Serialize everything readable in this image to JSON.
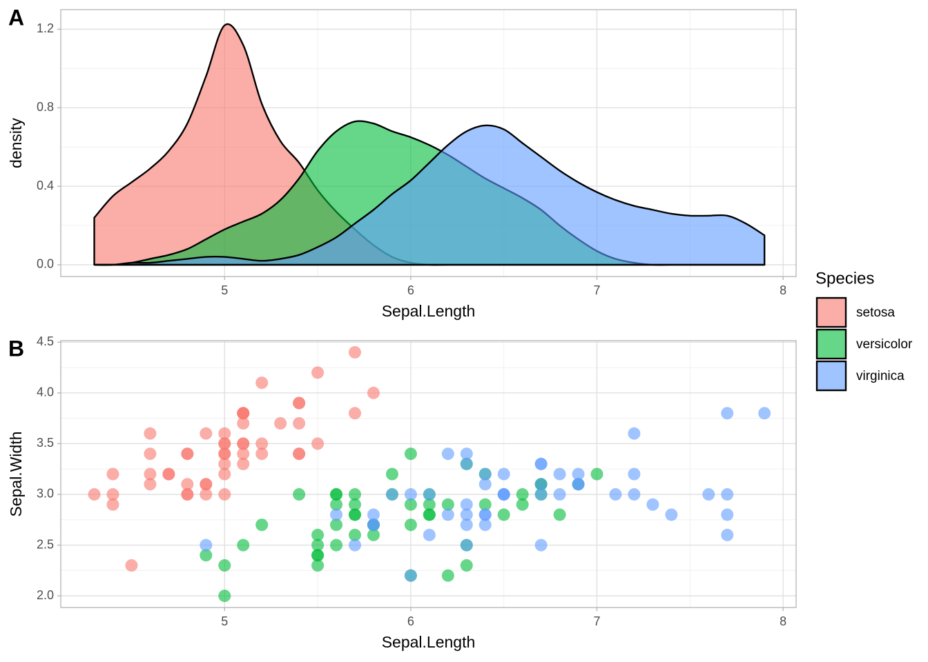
{
  "chart_data": [
    {
      "type": "density",
      "tag": "A",
      "xlabel": "Sepal.Length",
      "ylabel": "density",
      "x": [
        4.3,
        4.4,
        4.5,
        4.6,
        4.7,
        4.8,
        4.9,
        5.0,
        5.1,
        5.2,
        5.3,
        5.4,
        5.5,
        5.6,
        5.7,
        5.8,
        5.9,
        6.0,
        6.1,
        6.2,
        6.3,
        6.4,
        6.5,
        6.6,
        6.7,
        6.8,
        6.9,
        7.0,
        7.1,
        7.2,
        7.3,
        7.4,
        7.5,
        7.6,
        7.7,
        7.8,
        7.9
      ],
      "series": [
        {
          "name": "setosa",
          "color": "#F8766D",
          "values": [
            0.24,
            0.35,
            0.42,
            0.49,
            0.58,
            0.72,
            0.96,
            1.22,
            1.12,
            0.82,
            0.63,
            0.52,
            0.38,
            0.27,
            0.18,
            0.1,
            0.04,
            0.01,
            0,
            0,
            0,
            0,
            0,
            0,
            0,
            0,
            0,
            0,
            0,
            0,
            0,
            0,
            0,
            0,
            0,
            0,
            0
          ]
        },
        {
          "name": "versicolor",
          "color": "#00BA38",
          "values": [
            0,
            0,
            0.01,
            0.03,
            0.05,
            0.08,
            0.13,
            0.18,
            0.22,
            0.26,
            0.33,
            0.44,
            0.58,
            0.68,
            0.73,
            0.72,
            0.68,
            0.65,
            0.61,
            0.56,
            0.5,
            0.44,
            0.39,
            0.34,
            0.28,
            0.2,
            0.13,
            0.07,
            0.03,
            0.01,
            0,
            0,
            0,
            0,
            0,
            0,
            0
          ]
        },
        {
          "name": "virginica",
          "color": "#619CFF",
          "values": [
            0,
            0,
            0.01,
            0.01,
            0.02,
            0.03,
            0.04,
            0.04,
            0.03,
            0.02,
            0.03,
            0.05,
            0.09,
            0.14,
            0.21,
            0.28,
            0.36,
            0.43,
            0.52,
            0.61,
            0.68,
            0.71,
            0.69,
            0.62,
            0.55,
            0.48,
            0.42,
            0.37,
            0.33,
            0.3,
            0.28,
            0.26,
            0.25,
            0.25,
            0.25,
            0.21,
            0.15
          ]
        }
      ],
      "alpha": 0.6,
      "xlim": [
        4.12,
        8.07
      ],
      "xticks": [
        5,
        6,
        7,
        8
      ],
      "ylim": [
        -0.06,
        1.3
      ],
      "yticks": [
        {
          "value": 0,
          "label": "0.0"
        },
        {
          "value": 0.4,
          "label": "0.4"
        },
        {
          "value": 0.8,
          "label": "0.8"
        },
        {
          "value": 1.2,
          "label": "1.2"
        }
      ],
      "grid": true
    },
    {
      "type": "scatter",
      "tag": "B",
      "xlabel": "Sepal.Length",
      "ylabel": "Sepal.Width",
      "series": [
        {
          "color": "#F8766D",
          "x": [
            5.1,
            4.9,
            4.7,
            4.6,
            5.0,
            5.4,
            4.6,
            5.0,
            4.4,
            4.9,
            5.4,
            4.8,
            4.8,
            4.3,
            5.8,
            5.7,
            5.4,
            5.1,
            5.7,
            5.1,
            5.4,
            5.1,
            4.6,
            5.1,
            4.8,
            5.0,
            5.0,
            5.2,
            5.2,
            4.7,
            4.8,
            5.4,
            5.2,
            5.5,
            4.9,
            5.0,
            5.5,
            4.9,
            4.4,
            5.1,
            5.0,
            4.5,
            4.4,
            5.0,
            5.1,
            4.8,
            5.1,
            4.6,
            5.3,
            5.0
          ],
          "values": [
            3.5,
            3.0,
            3.2,
            3.1,
            3.6,
            3.9,
            3.4,
            3.4,
            2.9,
            3.1,
            3.7,
            3.4,
            3.0,
            3.0,
            4.0,
            4.4,
            3.9,
            3.5,
            3.8,
            3.8,
            3.4,
            3.7,
            3.6,
            3.3,
            3.4,
            3.0,
            3.4,
            3.5,
            3.4,
            3.2,
            3.1,
            3.4,
            4.1,
            4.2,
            3.1,
            3.2,
            3.5,
            3.6,
            3.0,
            3.4,
            3.5,
            2.3,
            3.2,
            3.5,
            3.8,
            3.0,
            3.8,
            3.2,
            3.7,
            3.3
          ]
        },
        {
          "color": "#00BA38",
          "x": [
            7.0,
            6.4,
            6.9,
            5.5,
            6.5,
            5.7,
            6.3,
            4.9,
            6.6,
            5.2,
            5.0,
            5.9,
            6.0,
            6.1,
            5.6,
            6.7,
            5.6,
            5.8,
            6.2,
            5.6,
            5.9,
            6.1,
            6.3,
            6.1,
            6.4,
            6.6,
            6.8,
            6.7,
            6.0,
            5.7,
            5.5,
            5.5,
            5.8,
            6.0,
            5.4,
            6.0,
            6.7,
            6.3,
            5.6,
            5.5,
            5.5,
            6.1,
            5.8,
            5.0,
            5.6,
            5.7,
            5.7,
            6.2,
            5.1,
            5.7
          ],
          "values": [
            3.2,
            3.2,
            3.1,
            2.3,
            2.8,
            2.8,
            3.3,
            2.4,
            2.9,
            2.7,
            2.0,
            3.0,
            2.2,
            2.9,
            2.9,
            3.1,
            3.0,
            2.7,
            2.2,
            2.5,
            3.2,
            2.8,
            2.5,
            2.8,
            2.9,
            3.0,
            2.8,
            3.0,
            2.9,
            2.6,
            2.4,
            2.4,
            2.7,
            2.7,
            3.0,
            3.4,
            3.1,
            2.3,
            3.0,
            2.5,
            2.6,
            3.0,
            2.6,
            2.3,
            2.7,
            3.0,
            2.9,
            2.9,
            2.5,
            2.8
          ]
        },
        {
          "color": "#619CFF",
          "x": [
            6.3,
            5.8,
            7.1,
            6.3,
            6.5,
            7.6,
            4.9,
            7.3,
            6.7,
            7.2,
            6.5,
            6.4,
            6.8,
            5.7,
            5.8,
            6.4,
            6.5,
            7.7,
            7.7,
            6.0,
            6.9,
            5.6,
            7.7,
            6.3,
            6.7,
            7.2,
            6.2,
            6.1,
            6.4,
            7.2,
            7.4,
            7.9,
            6.4,
            6.3,
            6.1,
            7.7,
            6.3,
            6.4,
            6.0,
            6.9,
            6.7,
            6.9,
            5.8,
            6.8,
            6.7,
            6.7,
            6.3,
            6.5,
            6.2,
            5.9
          ],
          "values": [
            3.3,
            2.7,
            3.0,
            2.9,
            3.0,
            3.0,
            2.5,
            2.9,
            2.5,
            3.6,
            3.2,
            2.7,
            3.0,
            2.5,
            2.8,
            3.2,
            3.0,
            3.8,
            2.6,
            2.2,
            3.2,
            2.8,
            2.8,
            2.7,
            3.3,
            3.2,
            2.8,
            3.0,
            2.8,
            3.0,
            2.8,
            3.8,
            2.8,
            2.8,
            2.6,
            3.0,
            3.4,
            3.1,
            3.0,
            3.1,
            3.1,
            3.1,
            2.7,
            3.2,
            3.3,
            3.0,
            2.5,
            3.0,
            3.4,
            3.0
          ]
        }
      ],
      "alpha": 0.6,
      "xlim": [
        4.12,
        8.07
      ],
      "xticks": [
        5,
        6,
        7,
        8
      ],
      "ylim": [
        1.885,
        4.515
      ],
      "yticks": [
        {
          "value": 2,
          "label": "2.0"
        },
        {
          "value": 2.5,
          "label": "2.5"
        },
        {
          "value": 3,
          "label": "3.0"
        },
        {
          "value": 3.5,
          "label": "3.5"
        },
        {
          "value": 4,
          "label": "4.0"
        },
        {
          "value": 4.5,
          "label": "4.5"
        }
      ],
      "grid": true
    }
  ],
  "legend": {
    "title": "Species",
    "position": "right"
  }
}
